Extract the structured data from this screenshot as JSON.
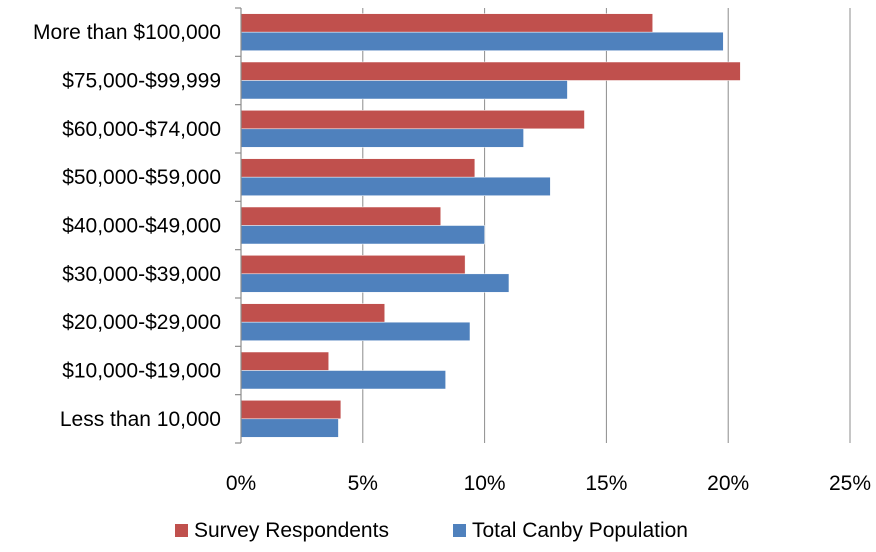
{
  "chart_data": {
    "type": "bar",
    "orientation": "horizontal",
    "title": "",
    "xlabel": "",
    "ylabel": "",
    "categories": [
      "More than $100,000",
      "$75,000-$99,999",
      "$60,000-$74,000",
      "$50,000-$59,000",
      "$40,000-$49,000",
      "$30,000-$39,000",
      "$20,000-$29,000",
      "$10,000-$19,000",
      "Less than 10,000"
    ],
    "series": [
      {
        "name": "Survey Respondents",
        "color": "#C0504D",
        "values": [
          16.9,
          20.5,
          14.1,
          9.6,
          8.2,
          9.2,
          5.9,
          3.6,
          4.1
        ]
      },
      {
        "name": "Total Canby Population",
        "color": "#4F81BD",
        "values": [
          19.8,
          13.4,
          11.6,
          12.7,
          10.0,
          11.0,
          9.4,
          8.4,
          4.0
        ]
      }
    ],
    "xlim": [
      0,
      25
    ],
    "x_ticks": [
      "0%",
      "5%",
      "10%",
      "15%",
      "20%",
      "25%"
    ],
    "grid": true,
    "legend_position": "bottom"
  }
}
